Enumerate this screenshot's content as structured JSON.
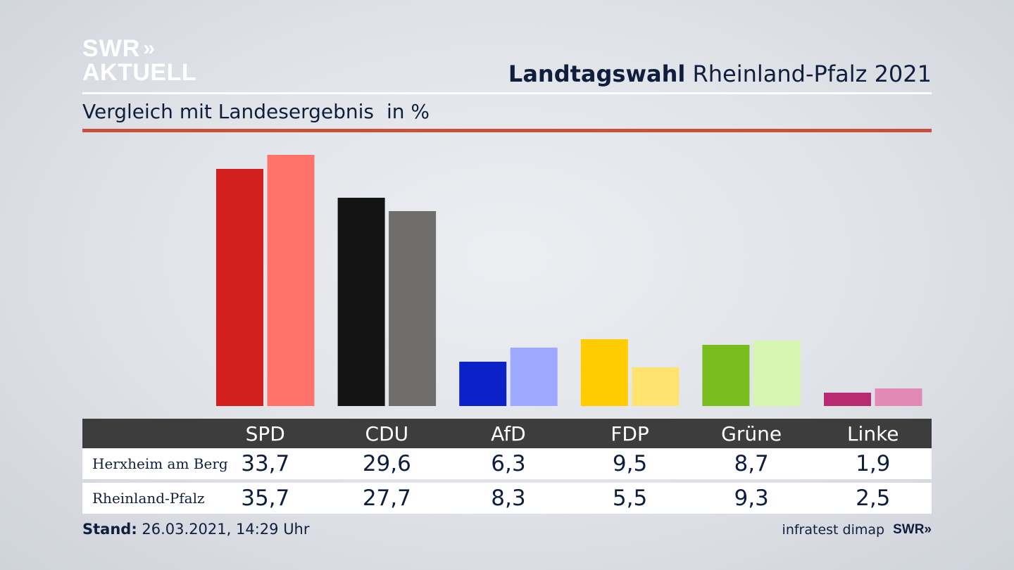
{
  "logo": {
    "line1": "SWR",
    "arrows": "»",
    "line2": "AKTUELL"
  },
  "header": {
    "title_bold": "Landtagswahl",
    "title_rest": "Rheinland-Pfalz 2021"
  },
  "subtitle": {
    "text": "Vergleich mit Landesergebnis",
    "unit": "in %"
  },
  "chart_data": {
    "type": "bar",
    "categories": [
      "SPD",
      "CDU",
      "AfD",
      "FDP",
      "Grüne",
      "Linke"
    ],
    "series": [
      {
        "name": "Herxheim am Berg",
        "values": [
          33.7,
          29.6,
          6.3,
          9.5,
          8.7,
          1.9
        ],
        "colors": [
          "#d41f1f",
          "#141414",
          "#0a22c8",
          "#ffcc00",
          "#78bc1e",
          "#b82a72"
        ]
      },
      {
        "name": "Rheinland-Pfalz",
        "values": [
          35.7,
          27.7,
          8.3,
          5.5,
          9.3,
          2.5
        ],
        "colors": [
          "#ff736a",
          "#706e6c",
          "#9eaaff",
          "#ffe270",
          "#d6f6b0",
          "#e28ab5"
        ]
      }
    ],
    "ylim": [
      0,
      36
    ],
    "grid": false,
    "legend": "table"
  },
  "table": {
    "headers": [
      "SPD",
      "CDU",
      "AfD",
      "FDP",
      "Grüne",
      "Linke"
    ],
    "rows": [
      {
        "label": "Herxheim am Berg",
        "values": [
          "33,7",
          "29,6",
          "6,3",
          "9,5",
          "8,7",
          "1,9"
        ]
      },
      {
        "label": "Rheinland-Pfalz",
        "values": [
          "35,7",
          "27,7",
          "8,3",
          "5,5",
          "9,3",
          "2,5"
        ]
      }
    ]
  },
  "footer": {
    "stand_label": "Stand:",
    "stand_value": "26.03.2021, 14:29 Uhr",
    "source": "infratest dimap",
    "brand": "SWR»"
  }
}
